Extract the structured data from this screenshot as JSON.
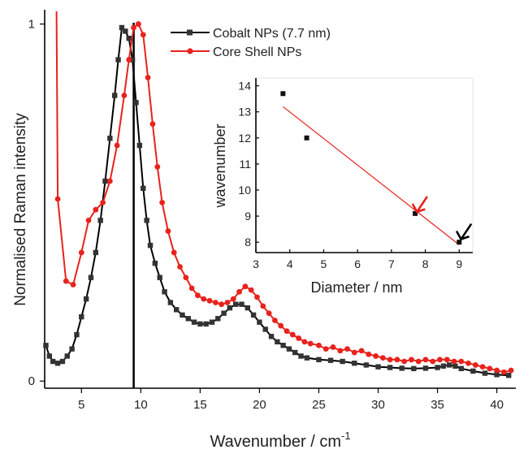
{
  "chart_data": [
    {
      "type": "line",
      "xlabel": "Wavenumber / cm",
      "xlabel_superscript": "-1",
      "ylabel": "Normalised Raman  intensity",
      "xlim": [
        1.9,
        41.6
      ],
      "ylim": [
        -0.02,
        1.04
      ],
      "xticks": [
        "5",
        "10",
        "15",
        "20",
        "25",
        "30",
        "35",
        "40"
      ],
      "yticks": [
        "0",
        "1"
      ],
      "ytick_values": [
        0,
        1
      ],
      "marker_line_x": 9.4,
      "legend_position": "top",
      "series": [
        {
          "name": "Cobalt NPs (7.7 nm)",
          "color": "#000000",
          "marker": "square",
          "points": [
            [
              2.0,
              0.1
            ],
            [
              2.3,
              0.07
            ],
            [
              2.6,
              0.055
            ],
            [
              3.0,
              0.05
            ],
            [
              3.4,
              0.055
            ],
            [
              3.8,
              0.07
            ],
            [
              4.2,
              0.09
            ],
            [
              4.6,
              0.13
            ],
            [
              5.0,
              0.18
            ],
            [
              5.4,
              0.23
            ],
            [
              5.8,
              0.29
            ],
            [
              6.2,
              0.36
            ],
            [
              6.6,
              0.45
            ],
            [
              7.0,
              0.56
            ],
            [
              7.4,
              0.68
            ],
            [
              7.8,
              0.8
            ],
            [
              8.1,
              0.9
            ],
            [
              8.4,
              0.99
            ],
            [
              8.7,
              0.98
            ],
            [
              9.0,
              0.96
            ],
            [
              9.3,
              0.9
            ],
            [
              9.6,
              0.78
            ],
            [
              9.9,
              0.66
            ],
            [
              10.2,
              0.54
            ],
            [
              10.5,
              0.45
            ],
            [
              10.8,
              0.38
            ],
            [
              11.2,
              0.33
            ],
            [
              11.6,
              0.29
            ],
            [
              12.0,
              0.25
            ],
            [
              12.5,
              0.22
            ],
            [
              13.0,
              0.2
            ],
            [
              13.5,
              0.185
            ],
            [
              14.0,
              0.175
            ],
            [
              14.5,
              0.165
            ],
            [
              15.0,
              0.16
            ],
            [
              15.5,
              0.16
            ],
            [
              16.0,
              0.165
            ],
            [
              16.5,
              0.175
            ],
            [
              17.0,
              0.19
            ],
            [
              17.5,
              0.205
            ],
            [
              18.0,
              0.215
            ],
            [
              18.5,
              0.215
            ],
            [
              19.0,
              0.205
            ],
            [
              19.5,
              0.185
            ],
            [
              20.0,
              0.165
            ],
            [
              20.5,
              0.145
            ],
            [
              21.0,
              0.125
            ],
            [
              21.5,
              0.11
            ],
            [
              22.0,
              0.1
            ],
            [
              22.5,
              0.09
            ],
            [
              23.0,
              0.08
            ],
            [
              23.5,
              0.07
            ],
            [
              24.0,
              0.065
            ],
            [
              25.0,
              0.06
            ],
            [
              26.0,
              0.058
            ],
            [
              27.0,
              0.055
            ],
            [
              28.0,
              0.05
            ],
            [
              29.0,
              0.045
            ],
            [
              30.0,
              0.04
            ],
            [
              31.0,
              0.038
            ],
            [
              32.0,
              0.036
            ],
            [
              33.0,
              0.035
            ],
            [
              34.0,
              0.036
            ],
            [
              35.0,
              0.038
            ],
            [
              35.5,
              0.042
            ],
            [
              36.0,
              0.045
            ],
            [
              36.5,
              0.042
            ],
            [
              37.0,
              0.035
            ],
            [
              38.0,
              0.028
            ],
            [
              39.0,
              0.022
            ],
            [
              40.0,
              0.018
            ],
            [
              41.0,
              0.016
            ]
          ]
        },
        {
          "name": "Core Shell NPs",
          "color": "#e8221d",
          "marker": "circle",
          "points": [
            [
              3.0,
              0.51
            ],
            [
              3.7,
              0.28
            ],
            [
              4.3,
              0.27
            ],
            [
              5.0,
              0.36
            ],
            [
              5.6,
              0.45
            ],
            [
              6.2,
              0.48
            ],
            [
              6.8,
              0.5
            ],
            [
              7.4,
              0.56
            ],
            [
              8.0,
              0.66
            ],
            [
              8.6,
              0.8
            ],
            [
              9.0,
              0.9
            ],
            [
              9.4,
              0.99
            ],
            [
              9.8,
              1.0
            ],
            [
              10.2,
              0.97
            ],
            [
              10.6,
              0.85
            ],
            [
              11.0,
              0.72
            ],
            [
              11.4,
              0.6
            ],
            [
              11.8,
              0.5
            ],
            [
              12.3,
              0.42
            ],
            [
              12.8,
              0.36
            ],
            [
              13.3,
              0.32
            ],
            [
              13.8,
              0.29
            ],
            [
              14.3,
              0.26
            ],
            [
              14.8,
              0.24
            ],
            [
              15.3,
              0.23
            ],
            [
              15.8,
              0.225
            ],
            [
              16.3,
              0.22
            ],
            [
              16.8,
              0.215
            ],
            [
              17.3,
              0.22
            ],
            [
              17.8,
              0.23
            ],
            [
              18.3,
              0.25
            ],
            [
              18.8,
              0.265
            ],
            [
              19.3,
              0.255
            ],
            [
              19.8,
              0.235
            ],
            [
              20.3,
              0.21
            ],
            [
              20.8,
              0.19
            ],
            [
              21.3,
              0.17
            ],
            [
              21.8,
              0.155
            ],
            [
              22.3,
              0.14
            ],
            [
              22.8,
              0.13
            ],
            [
              23.3,
              0.12
            ],
            [
              23.8,
              0.11
            ],
            [
              24.3,
              0.105
            ],
            [
              25.0,
              0.1
            ],
            [
              25.6,
              0.09
            ],
            [
              26.2,
              0.095
            ],
            [
              26.8,
              0.085
            ],
            [
              27.4,
              0.09
            ],
            [
              28.0,
              0.08
            ],
            [
              28.6,
              0.085
            ],
            [
              29.2,
              0.075
            ],
            [
              29.8,
              0.07
            ],
            [
              30.4,
              0.065
            ],
            [
              31.0,
              0.06
            ],
            [
              31.6,
              0.06
            ],
            [
              32.2,
              0.055
            ],
            [
              32.8,
              0.06
            ],
            [
              33.4,
              0.055
            ],
            [
              34.0,
              0.06
            ],
            [
              34.6,
              0.055
            ],
            [
              35.2,
              0.06
            ],
            [
              35.8,
              0.06
            ],
            [
              36.4,
              0.055
            ],
            [
              37.0,
              0.055
            ],
            [
              37.6,
              0.05
            ],
            [
              38.2,
              0.045
            ],
            [
              38.8,
              0.04
            ],
            [
              39.4,
              0.035
            ],
            [
              40.0,
              0.03
            ],
            [
              40.6,
              0.025
            ],
            [
              41.2,
              0.03
            ]
          ]
        }
      ]
    },
    {
      "type": "scatter",
      "xlabel": "Diameter / nm",
      "ylabel": "wavenumber",
      "xlim": [
        3,
        9.4
      ],
      "ylim": [
        7.6,
        14.3
      ],
      "xticks": [
        "3",
        "4",
        "5",
        "6",
        "7",
        "8",
        "9"
      ],
      "yticks": [
        "8",
        "9",
        "10",
        "11",
        "12",
        "13",
        "14"
      ],
      "points": [
        [
          3.8,
          13.7
        ],
        [
          4.5,
          12.0
        ],
        [
          7.7,
          9.1
        ],
        [
          9.0,
          8.0
        ]
      ],
      "fit_line": [
        [
          3.8,
          13.2
        ],
        [
          9.0,
          7.9
        ]
      ],
      "fit_color": "#e8221d",
      "annotations": [
        {
          "x": 7.85,
          "y": 9.35,
          "kind": "arrow",
          "color": "#e8221d"
        },
        {
          "x": 9.15,
          "y": 8.3,
          "kind": "arrow",
          "color": "#000000"
        }
      ]
    }
  ]
}
